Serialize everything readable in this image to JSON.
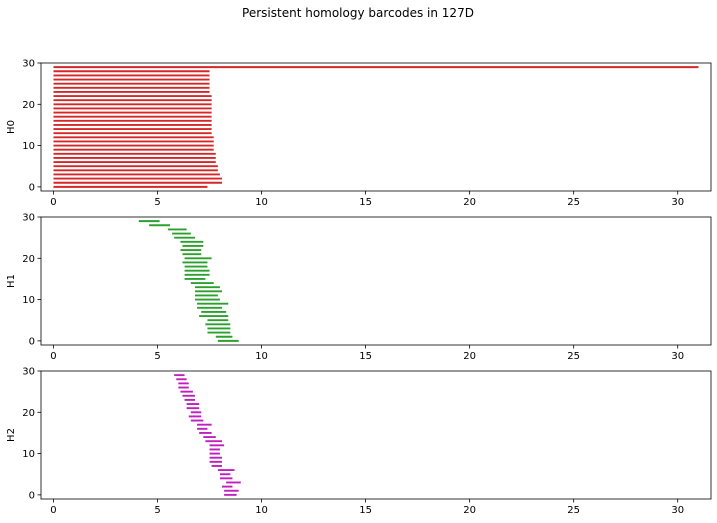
{
  "chart_data": {
    "type": "barcode",
    "title": "Persistent homology barcodes in 127D",
    "x_ticks": [
      0,
      5,
      10,
      15,
      20,
      25,
      30
    ],
    "y_ticks": [
      0,
      10,
      20,
      30
    ],
    "xlim": [
      -0.6,
      31.6
    ],
    "ylim": [
      -1,
      30
    ],
    "panels": [
      {
        "ylabel": "H0",
        "color": "#d62728",
        "bars": [
          [
            0,
            7.4
          ],
          [
            0,
            8.1
          ],
          [
            0,
            8.1
          ],
          [
            0,
            8.0
          ],
          [
            0,
            7.9
          ],
          [
            0,
            7.9
          ],
          [
            0,
            7.8
          ],
          [
            0,
            7.8
          ],
          [
            0,
            7.8
          ],
          [
            0,
            7.7
          ],
          [
            0,
            7.7
          ],
          [
            0,
            7.7
          ],
          [
            0,
            7.7
          ],
          [
            0,
            7.6
          ],
          [
            0,
            7.6
          ],
          [
            0,
            7.6
          ],
          [
            0,
            7.6
          ],
          [
            0,
            7.6
          ],
          [
            0,
            7.6
          ],
          [
            0,
            7.6
          ],
          [
            0,
            7.6
          ],
          [
            0,
            7.6
          ],
          [
            0,
            7.6
          ],
          [
            0,
            7.5
          ],
          [
            0,
            7.5
          ],
          [
            0,
            7.5
          ],
          [
            0,
            7.5
          ],
          [
            0,
            7.5
          ],
          [
            0,
            7.5
          ],
          [
            0,
            31.0
          ]
        ]
      },
      {
        "ylabel": "H1",
        "color": "#2ca02c",
        "bars": [
          [
            7.9,
            8.9
          ],
          [
            7.8,
            8.6
          ],
          [
            7.4,
            8.5
          ],
          [
            7.4,
            8.5
          ],
          [
            7.3,
            8.5
          ],
          [
            7.4,
            8.4
          ],
          [
            7.0,
            8.4
          ],
          [
            7.1,
            8.3
          ],
          [
            6.9,
            8.1
          ],
          [
            6.9,
            8.4
          ],
          [
            6.8,
            8.0
          ],
          [
            6.8,
            7.9
          ],
          [
            6.8,
            8.1
          ],
          [
            6.8,
            8.0
          ],
          [
            6.6,
            7.7
          ],
          [
            6.3,
            7.3
          ],
          [
            6.3,
            7.5
          ],
          [
            6.3,
            7.5
          ],
          [
            6.3,
            7.4
          ],
          [
            6.2,
            7.4
          ],
          [
            6.3,
            7.6
          ],
          [
            6.2,
            7.1
          ],
          [
            6.1,
            7.1
          ],
          [
            6.2,
            7.2
          ],
          [
            6.1,
            7.2
          ],
          [
            5.8,
            6.8
          ],
          [
            5.7,
            6.6
          ],
          [
            5.5,
            6.4
          ],
          [
            4.6,
            5.6
          ],
          [
            4.1,
            5.1
          ]
        ]
      },
      {
        "ylabel": "H2",
        "color": "#bf1fbf",
        "bars": [
          [
            8.2,
            8.8
          ],
          [
            8.2,
            8.9
          ],
          [
            8.1,
            8.6
          ],
          [
            8.3,
            9.0
          ],
          [
            8.0,
            8.6
          ],
          [
            8.0,
            8.5
          ],
          [
            7.9,
            8.7
          ],
          [
            7.6,
            8.1
          ],
          [
            7.5,
            8.1
          ],
          [
            7.5,
            8.1
          ],
          [
            7.5,
            8.0
          ],
          [
            7.5,
            8.0
          ],
          [
            7.5,
            8.2
          ],
          [
            7.3,
            8.1
          ],
          [
            7.2,
            7.8
          ],
          [
            7.0,
            7.6
          ],
          [
            6.9,
            7.4
          ],
          [
            6.9,
            7.6
          ],
          [
            6.6,
            7.2
          ],
          [
            6.5,
            7.1
          ],
          [
            6.6,
            7.1
          ],
          [
            6.4,
            7.0
          ],
          [
            6.4,
            7.0
          ],
          [
            6.3,
            6.8
          ],
          [
            6.2,
            6.8
          ],
          [
            6.1,
            6.7
          ],
          [
            6.0,
            6.5
          ],
          [
            6.0,
            6.5
          ],
          [
            5.9,
            6.4
          ],
          [
            5.8,
            6.3
          ]
        ]
      }
    ]
  }
}
